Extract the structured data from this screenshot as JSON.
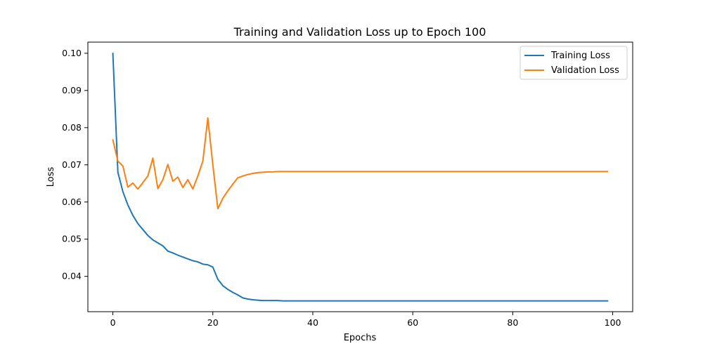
{
  "chart_data": {
    "type": "line",
    "title": "Training and Validation Loss up to Epoch 100",
    "xlabel": "Epochs",
    "ylabel": "Loss",
    "xlim": [
      -5,
      104
    ],
    "ylim": [
      0.0305,
      0.103
    ],
    "x_ticks": [
      0,
      20,
      40,
      60,
      80,
      100
    ],
    "y_ticks": [
      0.04,
      0.05,
      0.06,
      0.07,
      0.08,
      0.09,
      0.1
    ],
    "y_tick_labels": [
      "0.04",
      "0.05",
      "0.06",
      "0.07",
      "0.08",
      "0.09",
      "0.10"
    ],
    "grid": false,
    "legend_position": "top-right",
    "x": [
      0,
      1,
      2,
      3,
      4,
      5,
      6,
      7,
      8,
      9,
      10,
      11,
      12,
      13,
      14,
      15,
      16,
      17,
      18,
      19,
      20,
      21,
      22,
      23,
      24,
      25,
      26,
      27,
      28,
      29,
      30,
      31,
      32,
      33,
      34,
      35,
      36,
      37,
      38,
      39,
      40,
      41,
      42,
      43,
      44,
      45,
      46,
      47,
      48,
      49,
      50,
      51,
      52,
      53,
      54,
      55,
      56,
      57,
      58,
      59,
      60,
      61,
      62,
      63,
      64,
      65,
      66,
      67,
      68,
      69,
      70,
      71,
      72,
      73,
      74,
      75,
      76,
      77,
      78,
      79,
      80,
      81,
      82,
      83,
      84,
      85,
      86,
      87,
      88,
      89,
      90,
      91,
      92,
      93,
      94,
      95,
      96,
      97,
      98,
      99
    ],
    "series": [
      {
        "name": "Training Loss",
        "color": "#1f77b4",
        "values": [
          0.1,
          0.068,
          0.0628,
          0.0592,
          0.0564,
          0.0542,
          0.0526,
          0.051,
          0.0498,
          0.049,
          0.0482,
          0.0468,
          0.0463,
          0.0457,
          0.0452,
          0.0447,
          0.0442,
          0.0439,
          0.0433,
          0.0431,
          0.0425,
          0.0392,
          0.0375,
          0.0365,
          0.0357,
          0.035,
          0.0342,
          0.0339,
          0.0337,
          0.0336,
          0.0335,
          0.0335,
          0.0335,
          0.0335,
          0.0334,
          0.0334,
          0.0334,
          0.0334,
          0.0334,
          0.0334,
          0.0334,
          0.0334,
          0.0334,
          0.0334,
          0.0334,
          0.0334,
          0.0334,
          0.0334,
          0.0334,
          0.0334,
          0.0334,
          0.0334,
          0.0334,
          0.0334,
          0.0334,
          0.0334,
          0.0334,
          0.0334,
          0.0334,
          0.0334,
          0.0334,
          0.0334,
          0.0334,
          0.0334,
          0.0334,
          0.0334,
          0.0334,
          0.0334,
          0.0334,
          0.0334,
          0.0334,
          0.0334,
          0.0334,
          0.0334,
          0.0334,
          0.0334,
          0.0334,
          0.0334,
          0.0334,
          0.0334,
          0.0334,
          0.0334,
          0.0334,
          0.0334,
          0.0334,
          0.0334,
          0.0334,
          0.0334,
          0.0334,
          0.0334,
          0.0334,
          0.0334,
          0.0334,
          0.0334,
          0.0334,
          0.0334,
          0.0334,
          0.0334,
          0.0334,
          0.0334
        ]
      },
      {
        "name": "Validation Loss",
        "color": "#ff7f0e",
        "values": [
          0.0767,
          0.071,
          0.0697,
          0.064,
          0.0651,
          0.0635,
          0.0652,
          0.067,
          0.0718,
          0.0636,
          0.066,
          0.0701,
          0.0656,
          0.0667,
          0.0639,
          0.066,
          0.0635,
          0.067,
          0.071,
          0.0826,
          0.07,
          0.0582,
          0.061,
          0.063,
          0.0648,
          0.0665,
          0.067,
          0.0674,
          0.0677,
          0.0679,
          0.068,
          0.0681,
          0.0681,
          0.0682,
          0.0682,
          0.0682,
          0.0682,
          0.0682,
          0.0682,
          0.0682,
          0.0682,
          0.0682,
          0.0682,
          0.0682,
          0.0682,
          0.0682,
          0.0682,
          0.0682,
          0.0682,
          0.0682,
          0.0682,
          0.0682,
          0.0682,
          0.0682,
          0.0682,
          0.0682,
          0.0682,
          0.0682,
          0.0682,
          0.0682,
          0.0682,
          0.0682,
          0.0682,
          0.0682,
          0.0682,
          0.0682,
          0.0682,
          0.0682,
          0.0682,
          0.0682,
          0.0682,
          0.0682,
          0.0682,
          0.0682,
          0.0682,
          0.0682,
          0.0682,
          0.0682,
          0.0682,
          0.0682,
          0.0682,
          0.0682,
          0.0682,
          0.0682,
          0.0682,
          0.0682,
          0.0682,
          0.0682,
          0.0682,
          0.0682,
          0.0682,
          0.0682,
          0.0682,
          0.0682,
          0.0682,
          0.0682,
          0.0682,
          0.0682,
          0.0682,
          0.0682
        ]
      }
    ]
  }
}
